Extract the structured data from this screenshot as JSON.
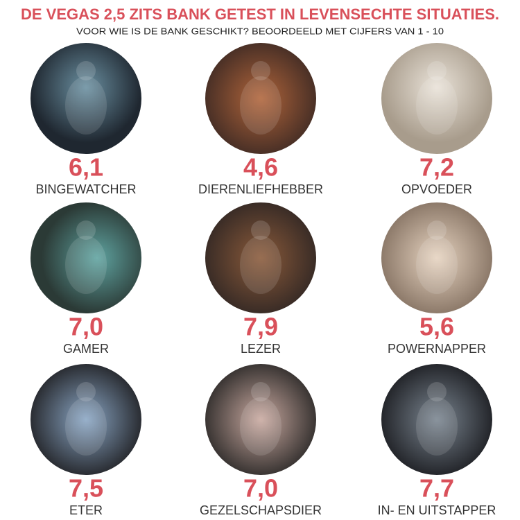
{
  "header": {
    "title": "DE VEGAS 2,5 ZITS BANK GETEST IN LEVENSECHTE SITUATIES.",
    "subtitle": "VOOR WIE IS DE BANK GESCHIKT? BEOORDEELD MET CIJFERS VAN 1 - 10"
  },
  "items": [
    {
      "score": "6,1",
      "label": "BINGEWATCHER"
    },
    {
      "score": "4,6",
      "label": "DIERENLIEFHEBBER"
    },
    {
      "score": "7,2",
      "label": "OPVOEDER"
    },
    {
      "score": "7,0",
      "label": "GAMER"
    },
    {
      "score": "7,9",
      "label": "LEZER"
    },
    {
      "score": "5,6",
      "label": "POWERNAPPER"
    },
    {
      "score": "7,5",
      "label": "ETER"
    },
    {
      "score": "7,0",
      "label": "GEZELSCHAPSDIER"
    },
    {
      "score": "7,7",
      "label": "IN- EN UITSTAPPER"
    }
  ]
}
